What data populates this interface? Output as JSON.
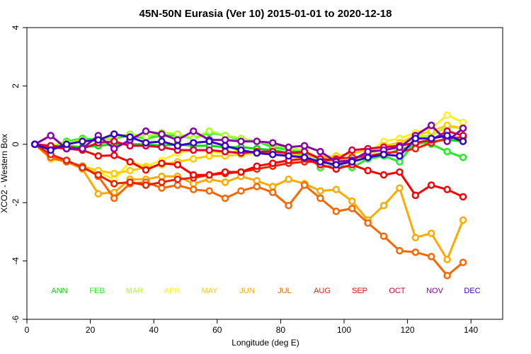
{
  "chart_data": {
    "type": "line",
    "title": "45N-50N Eurasia (Ver 10)   2015-01-01 to 2020-12-18",
    "xlabel": "Longitude (deg E)",
    "ylabel": "XCO2 - Western Box",
    "xlim": [
      0,
      150
    ],
    "ylim": [
      -6,
      4
    ],
    "xticks": [
      0,
      20,
      40,
      60,
      80,
      100,
      120,
      140
    ],
    "yticks": [
      -6,
      -4,
      -2,
      0,
      2,
      4
    ],
    "grid": false,
    "x": [
      2.5,
      7.5,
      12.5,
      17.5,
      22.5,
      27.5,
      32.5,
      37.5,
      42.5,
      47.5,
      52.5,
      57.5,
      62.5,
      67.5,
      72.5,
      77.5,
      82.5,
      87.5,
      92.5,
      97.5,
      102.5,
      107.5,
      112.5,
      117.5,
      122.5,
      127.5,
      132.5,
      137.5
    ],
    "series": [
      {
        "name": "ANN",
        "color": "#00dd00",
        "values": [
          0,
          -0.05,
          -0.05,
          -0.1,
          -0.05,
          0.0,
          0.0,
          0.0,
          -0.05,
          0.0,
          -0.05,
          -0.05,
          -0.1,
          -0.1,
          -0.15,
          -0.2,
          -0.3,
          -0.35,
          -0.5,
          -0.55,
          -0.55,
          -0.45,
          -0.35,
          -0.2,
          0.0,
          0.1,
          0.15,
          0.1
        ]
      },
      {
        "name": "FEB",
        "color": "#22ee22",
        "values": [
          0,
          -0.1,
          0.1,
          0.2,
          0.15,
          0.2,
          0.3,
          0.2,
          0.3,
          0.3,
          0.2,
          0.4,
          0.3,
          0.15,
          0.1,
          -0.1,
          -0.2,
          -0.3,
          -0.8,
          -0.7,
          -0.8,
          -0.5,
          -0.4,
          -0.6,
          0.1,
          0.0,
          -0.25,
          -0.45
        ]
      },
      {
        "name": "MAR",
        "color": "#aaff22",
        "values": [
          0,
          -0.05,
          0.05,
          0.15,
          0.1,
          0.25,
          0.35,
          0.25,
          0.4,
          0.35,
          0.2,
          0.45,
          0.3,
          0.2,
          0.1,
          0.0,
          -0.15,
          -0.2,
          -0.5,
          -0.45,
          -0.6,
          -0.3,
          -0.2,
          -0.1,
          0.25,
          0.3,
          0.6,
          0.55
        ]
      },
      {
        "name": "APR",
        "color": "#ffee22",
        "values": [
          0,
          -0.4,
          -0.55,
          -0.85,
          -0.95,
          -1.2,
          -0.6,
          -0.75,
          -0.55,
          -0.3,
          -0.2,
          -0.25,
          -0.3,
          -0.2,
          -0.3,
          -0.25,
          -0.4,
          -0.5,
          -0.7,
          -0.5,
          -0.6,
          -0.3,
          0.1,
          0.2,
          0.4,
          0.55,
          1.0,
          0.75
        ]
      },
      {
        "name": "MAY",
        "color": "#ffcc00",
        "values": [
          0,
          -0.5,
          -0.6,
          -0.75,
          -0.9,
          -1.0,
          -0.9,
          -0.8,
          -0.7,
          -0.6,
          -0.5,
          -0.4,
          -0.4,
          -0.35,
          -0.3,
          -0.3,
          -0.35,
          -0.4,
          -0.45,
          -0.4,
          -0.3,
          -0.2,
          -0.05,
          0.05,
          0.3,
          0.45,
          0.65,
          0.55
        ]
      },
      {
        "name": "JUN",
        "color": "#ffaa00",
        "values": [
          0,
          -0.45,
          -0.6,
          -0.85,
          -1.7,
          -1.65,
          -1.2,
          -1.2,
          -1.1,
          -1.1,
          -1.35,
          -1.2,
          -1.3,
          -1.1,
          -1.25,
          -1.45,
          -1.2,
          -1.35,
          -1.6,
          -1.55,
          -1.95,
          -2.6,
          -2.1,
          -1.5,
          -3.2,
          -3.05,
          -3.95,
          -2.6
        ]
      },
      {
        "name": "JUL",
        "color": "#ff6600",
        "values": [
          0,
          -0.45,
          -0.6,
          -0.75,
          -1.1,
          -1.85,
          -1.35,
          -1.3,
          -1.5,
          -1.4,
          -1.55,
          -1.6,
          -1.85,
          -1.6,
          -1.45,
          -1.65,
          -2.1,
          -1.4,
          -1.85,
          -2.3,
          -2.2,
          -2.7,
          -3.15,
          -3.65,
          -3.7,
          -3.85,
          -4.5,
          -4.05
        ]
      },
      {
        "name": "AUG",
        "color": "#ee2200",
        "values": [
          0,
          -0.35,
          -0.55,
          -0.8,
          -1.05,
          -1.35,
          -1.3,
          -1.4,
          -1.3,
          -1.2,
          -1.15,
          -1.05,
          -1.0,
          -0.95,
          -0.85,
          -0.75,
          -0.65,
          -0.6,
          -0.6,
          -0.5,
          -0.45,
          -0.4,
          -0.3,
          -0.25,
          -0.15,
          0.05,
          0.2,
          0.25
        ]
      },
      {
        "name": "SEP",
        "color": "#ff0000",
        "values": [
          0,
          -0.1,
          -0.15,
          -0.2,
          -0.4,
          -0.38,
          -0.6,
          -0.88,
          -0.65,
          -0.7,
          -1.05,
          -1.05,
          -0.95,
          -0.95,
          -0.75,
          -0.65,
          -0.55,
          -0.5,
          -0.7,
          -0.85,
          -0.7,
          -0.9,
          -1.05,
          -0.95,
          -1.75,
          -1.4,
          -1.55,
          -1.8
        ]
      },
      {
        "name": "OCT",
        "color": "#dd0033",
        "values": [
          0,
          -0.05,
          -0.1,
          -0.15,
          0.05,
          0.1,
          -0.05,
          -0.05,
          -0.1,
          -0.2,
          -0.2,
          -0.2,
          -0.25,
          -0.3,
          -0.25,
          -0.25,
          -0.3,
          -0.25,
          -0.5,
          -0.55,
          -0.2,
          -0.15,
          -0.1,
          -0.05,
          0.05,
          0.15,
          0.45,
          0.3
        ]
      },
      {
        "name": "NOV",
        "color": "#8800aa",
        "values": [
          0,
          0.3,
          -0.15,
          -0.15,
          0.3,
          -0.15,
          0.15,
          0.45,
          0.35,
          0.15,
          0.45,
          0.15,
          0.15,
          0.1,
          0.1,
          0.05,
          -0.1,
          -0.05,
          -0.25,
          -0.6,
          -0.55,
          -0.25,
          -0.2,
          -0.1,
          0.3,
          0.65,
          0.1,
          0.55
        ]
      },
      {
        "name": "DEC",
        "color": "#3300cc",
        "values": [
          0,
          -0.2,
          0.0,
          0.1,
          0.15,
          0.35,
          0.25,
          0.05,
          0.1,
          -0.05,
          0.05,
          0.1,
          -0.05,
          -0.2,
          -0.3,
          -0.35,
          -0.4,
          -0.45,
          -0.6,
          -0.7,
          -0.6,
          -0.45,
          -0.35,
          -0.4,
          0.2,
          0.2,
          0.3,
          0.1
        ]
      }
    ]
  }
}
